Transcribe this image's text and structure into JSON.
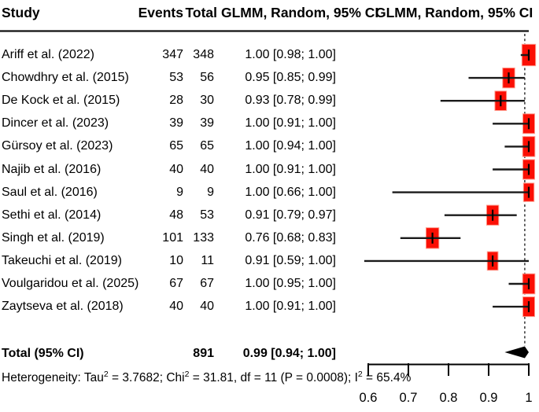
{
  "header": {
    "study": "Study",
    "events": "Events",
    "total": "Total",
    "ci_column": "GLMM, Random, 95% CI",
    "plot_column": "GLMM, Random, 95% CI"
  },
  "chart_data": {
    "type": "forest",
    "effect_label": "GLMM, Random, 95% CI",
    "x_axis": {
      "range": [
        0.6,
        1.0
      ],
      "tick_values": [
        0.6,
        0.7,
        0.8,
        0.9,
        1.0
      ],
      "tick_labels": [
        "0.6",
        "0.7",
        "0.8",
        "0.9",
        "1"
      ]
    },
    "marker_color": "#fb0f04",
    "studies": [
      {
        "name": "Ariff et al. (2022)",
        "events": "347",
        "total": "348",
        "estimate": 1.0,
        "lower": 0.98,
        "upper": 1.0,
        "ci_label": "1.00 [0.98; 1.00]"
      },
      {
        "name": "Chowdhry et al. (2015)",
        "events": "53",
        "total": "56",
        "estimate": 0.95,
        "lower": 0.85,
        "upper": 0.99,
        "ci_label": "0.95 [0.85; 0.99]"
      },
      {
        "name": "De Kock et al. (2015)",
        "events": "28",
        "total": "30",
        "estimate": 0.93,
        "lower": 0.78,
        "upper": 0.99,
        "ci_label": "0.93 [0.78; 0.99]"
      },
      {
        "name": "Dincer et al. (2023)",
        "events": "39",
        "total": "39",
        "estimate": 1.0,
        "lower": 0.91,
        "upper": 1.0,
        "ci_label": "1.00 [0.91; 1.00]"
      },
      {
        "name": "Gürsoy et al. (2023)",
        "events": "65",
        "total": "65",
        "estimate": 1.0,
        "lower": 0.94,
        "upper": 1.0,
        "ci_label": "1.00 [0.94; 1.00]"
      },
      {
        "name": "Najib et al. (2016)",
        "events": "40",
        "total": "40",
        "estimate": 1.0,
        "lower": 0.91,
        "upper": 1.0,
        "ci_label": "1.00 [0.91; 1.00]"
      },
      {
        "name": "Saul et al. (2016)",
        "events": "9",
        "total": "9",
        "estimate": 1.0,
        "lower": 0.66,
        "upper": 1.0,
        "ci_label": "1.00 [0.66; 1.00]"
      },
      {
        "name": "Sethi et al. (2014)",
        "events": "48",
        "total": "53",
        "estimate": 0.91,
        "lower": 0.79,
        "upper": 0.97,
        "ci_label": "0.91 [0.79; 0.97]"
      },
      {
        "name": "Singh et al. (2019)",
        "events": "101",
        "total": "133",
        "estimate": 0.76,
        "lower": 0.68,
        "upper": 0.83,
        "ci_label": "0.76 [0.68; 0.83]"
      },
      {
        "name": "Takeuchi et al. (2019)",
        "events": "10",
        "total": "11",
        "estimate": 0.91,
        "lower": 0.59,
        "upper": 1.0,
        "ci_label": "0.91 [0.59; 1.00]"
      },
      {
        "name": "Voulgaridou et al. (2025)",
        "events": "67",
        "total": "67",
        "estimate": 1.0,
        "lower": 0.95,
        "upper": 1.0,
        "ci_label": "1.00 [0.95; 1.00]"
      },
      {
        "name": "Zaytseva et al. (2018)",
        "events": "40",
        "total": "40",
        "estimate": 1.0,
        "lower": 0.91,
        "upper": 1.0,
        "ci_label": "1.00 [0.91; 1.00]"
      }
    ],
    "overall": {
      "label": "Total (95% CI)",
      "total": "891",
      "estimate": 0.99,
      "lower": 0.94,
      "upper": 1.0,
      "ci_label": "0.99 [0.94; 1.00]"
    },
    "heterogeneity": {
      "p1": "Heterogeneity: Tau",
      "s1": "2",
      "p2": " = 3.7682; Chi",
      "s2": "2",
      "p3": " = 31.81, df = 11 (P = 0.0008); I",
      "s3": "2",
      "p4": " = 65.4%"
    }
  }
}
